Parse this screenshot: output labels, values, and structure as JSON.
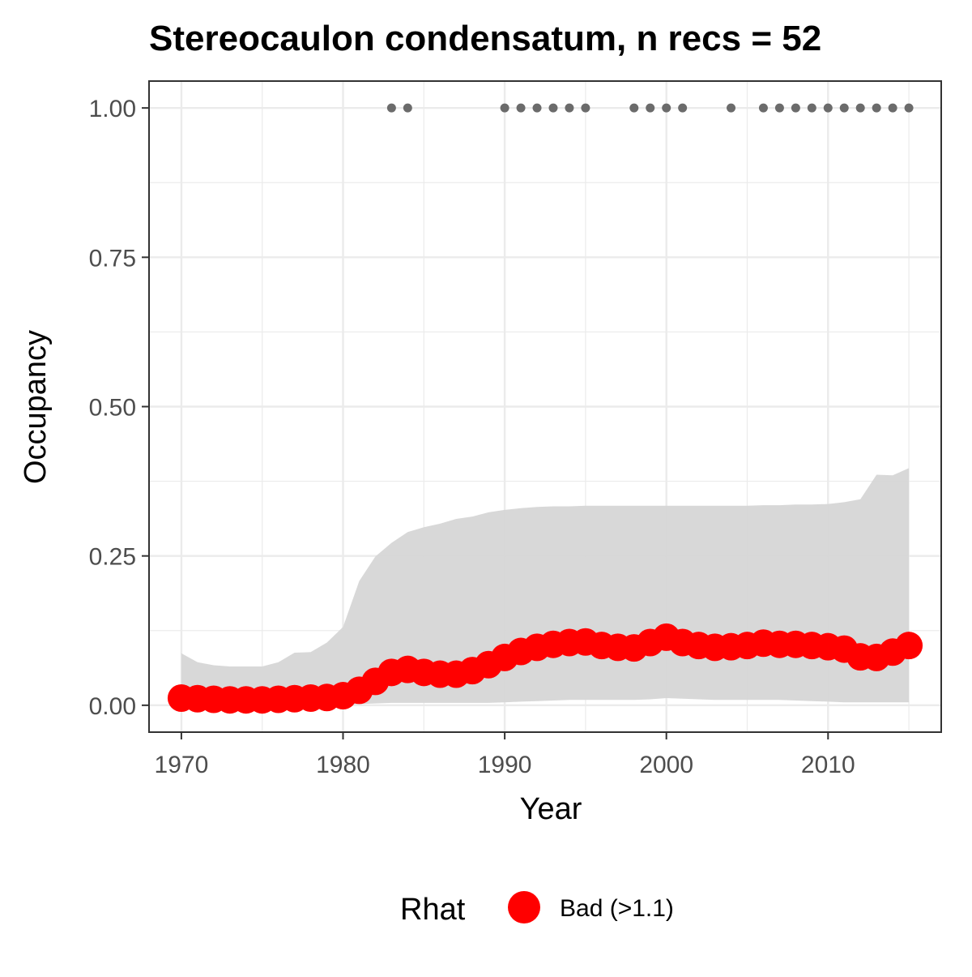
{
  "chart_data": {
    "type": "line",
    "title": "Stereocaulon condensatum, n recs = 52",
    "xlabel": "Year",
    "ylabel": "Occupancy",
    "xlim": [
      1968,
      2017
    ],
    "ylim": [
      -0.045,
      1.045
    ],
    "x_ticks": [
      1970,
      1980,
      1990,
      2000,
      2010
    ],
    "x_tick_labels": [
      "1970",
      "1980",
      "1990",
      "2000",
      "2010"
    ],
    "y_ticks": [
      0,
      0.25,
      0.5,
      0.75,
      1.0
    ],
    "y_tick_labels": [
      "0.00",
      "0.25",
      "0.50",
      "0.75",
      "1.00"
    ],
    "grid": true,
    "x": [
      1970,
      1971,
      1972,
      1973,
      1974,
      1975,
      1976,
      1977,
      1978,
      1979,
      1980,
      1981,
      1982,
      1983,
      1984,
      1985,
      1986,
      1987,
      1988,
      1989,
      1990,
      1991,
      1992,
      1993,
      1994,
      1995,
      1996,
      1997,
      1998,
      1999,
      2000,
      2001,
      2002,
      2003,
      2004,
      2005,
      2006,
      2007,
      2008,
      2009,
      2010,
      2011,
      2012,
      2013,
      2014,
      2015
    ],
    "series": [
      {
        "values": [
          0.012,
          0.011,
          0.01,
          0.009,
          0.009,
          0.009,
          0.01,
          0.011,
          0.012,
          0.013,
          0.016,
          0.025,
          0.04,
          0.055,
          0.06,
          0.055,
          0.052,
          0.052,
          0.058,
          0.068,
          0.08,
          0.09,
          0.097,
          0.102,
          0.105,
          0.106,
          0.1,
          0.097,
          0.096,
          0.105,
          0.114,
          0.105,
          0.1,
          0.097,
          0.098,
          0.1,
          0.104,
          0.102,
          0.102,
          0.1,
          0.098,
          0.094,
          0.081,
          0.08,
          0.089,
          0.1
        ],
        "lower": [
          0.001,
          0.001,
          0.001,
          0.001,
          0.001,
          0.001,
          0.001,
          0.001,
          0.001,
          0.001,
          0.001,
          0.002,
          0.003,
          0.004,
          0.004,
          0.004,
          0.004,
          0.004,
          0.004,
          0.004,
          0.005,
          0.006,
          0.007,
          0.008,
          0.009,
          0.009,
          0.009,
          0.009,
          0.009,
          0.01,
          0.012,
          0.011,
          0.01,
          0.009,
          0.009,
          0.009,
          0.009,
          0.009,
          0.008,
          0.007,
          0.006,
          0.005,
          0.005,
          0.005,
          0.005,
          0.005
        ],
        "upper": [
          0.087,
          0.072,
          0.067,
          0.065,
          0.065,
          0.065,
          0.072,
          0.088,
          0.089,
          0.105,
          0.131,
          0.208,
          0.249,
          0.272,
          0.29,
          0.298,
          0.304,
          0.312,
          0.316,
          0.323,
          0.327,
          0.33,
          0.332,
          0.333,
          0.333,
          0.334,
          0.334,
          0.334,
          0.334,
          0.334,
          0.334,
          0.334,
          0.334,
          0.334,
          0.334,
          0.334,
          0.335,
          0.335,
          0.336,
          0.336,
          0.337,
          0.34,
          0.345,
          0.386,
          0.385,
          0.397
        ]
      }
    ],
    "detection_years": [
      1983,
      1984,
      1990,
      1991,
      1992,
      1993,
      1994,
      1995,
      1998,
      1999,
      2000,
      2001,
      2004,
      2006,
      2007,
      2008,
      2009,
      2010,
      2011,
      2012,
      2013,
      2014,
      2015
    ],
    "detection_value": 1.0,
    "legend": {
      "title": "Rhat",
      "entries": [
        {
          "label": "Bad (>1.1)",
          "color": "#ff0000"
        }
      ],
      "placement": "bottom"
    },
    "colors": {
      "point": "#ff0000",
      "ribbon": "#d6d6d6",
      "detection": "#6b6b6b",
      "grid": "#ebebeb",
      "panel_border": "#333333"
    }
  }
}
